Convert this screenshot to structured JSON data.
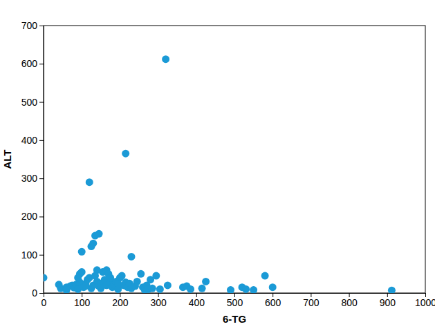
{
  "chart_data": {
    "type": "scatter",
    "x_label": "6-TG",
    "y_label": "ALT",
    "color": "#1b9ad6",
    "marker": "circle",
    "xlim": [
      0,
      1000
    ],
    "ylim": [
      0,
      700
    ],
    "xticks": [
      0,
      100,
      200,
      300,
      400,
      500,
      600,
      700,
      800,
      900,
      1000
    ],
    "yticks": [
      0,
      100,
      200,
      300,
      400,
      500,
      600,
      700
    ],
    "x": [
      320,
      215,
      120,
      145,
      135,
      130,
      125,
      100,
      230,
      0,
      40,
      45,
      60,
      70,
      75,
      80,
      85,
      90,
      95,
      95,
      100,
      105,
      110,
      115,
      120,
      125,
      130,
      135,
      140,
      140,
      145,
      150,
      155,
      160,
      165,
      165,
      170,
      175,
      180,
      185,
      190,
      195,
      200,
      205,
      210,
      215,
      220,
      225,
      230,
      240,
      245,
      255,
      260,
      265,
      270,
      275,
      280,
      285,
      295,
      305,
      325,
      365,
      375,
      385,
      415,
      425,
      490,
      520,
      530,
      550,
      580,
      600,
      912,
      150,
      175,
      195,
      60,
      110,
      90
    ],
    "values": [
      612,
      365,
      290,
      155,
      150,
      130,
      122,
      108,
      95,
      40,
      22,
      12,
      15,
      18,
      20,
      14,
      22,
      10,
      28,
      50,
      55,
      15,
      25,
      35,
      40,
      12,
      20,
      45,
      60,
      30,
      18,
      25,
      55,
      35,
      60,
      20,
      50,
      28,
      15,
      22,
      30,
      10,
      40,
      45,
      20,
      28,
      15,
      25,
      12,
      18,
      30,
      50,
      15,
      8,
      20,
      10,
      35,
      12,
      45,
      10,
      20,
      15,
      18,
      10,
      12,
      30,
      8,
      15,
      10,
      8,
      45,
      15,
      7,
      12,
      40,
      25,
      8,
      18,
      40
    ]
  }
}
